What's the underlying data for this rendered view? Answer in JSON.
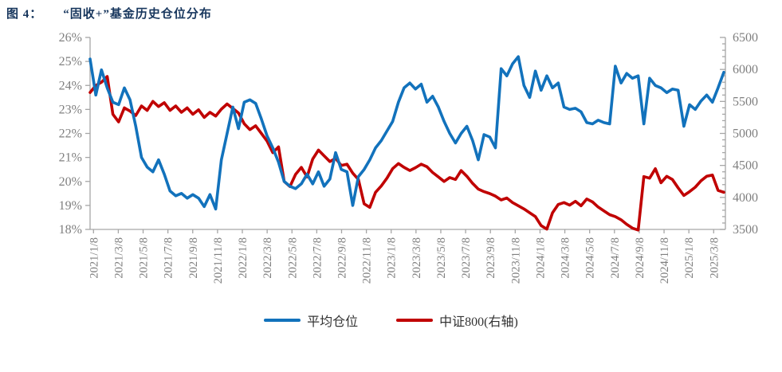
{
  "title": {
    "prefix": "图 4：",
    "text": "“固收+”基金历史仓位分布"
  },
  "legend": [
    {
      "label": "平均仓位",
      "color": "#1272BC"
    },
    {
      "label": "中证800(右轴)",
      "color": "#C00000"
    }
  ],
  "colors": {
    "title": "#17365D",
    "axis_line": "#A6A6A6",
    "axis_text": "#7F7F7F",
    "blue_series": "#1272BC",
    "red_series": "#C00000",
    "background": "#FFFFFF"
  },
  "chart_data": {
    "type": "line",
    "title": "“固收+”基金历史仓位分布",
    "sampling_note": "approx. biweekly points from 2021/1/8 to 2025/4",
    "grid": false,
    "legend_position": "bottom",
    "x_tick_labels": [
      "2021/1/8",
      "2021/3/8",
      "2021/5/8",
      "2021/7/8",
      "2021/9/8",
      "2021/11/8",
      "2022/1/8",
      "2022/3/8",
      "2022/5/8",
      "2022/7/8",
      "2022/9/8",
      "2022/11/8",
      "2023/1/8",
      "2023/3/8",
      "2023/5/8",
      "2023/7/8",
      "2023/9/8",
      "2023/11/8",
      "2024/1/8",
      "2024/3/8",
      "2024/5/8",
      "2024/7/8",
      "2024/9/8",
      "2024/11/8",
      "2025/1/8",
      "2025/3/8"
    ],
    "left_axis": {
      "min": 18,
      "max": 26,
      "step": 1,
      "suffix": "%",
      "tick_labels": [
        "26%",
        "25%",
        "24%",
        "23%",
        "22%",
        "21%",
        "20%",
        "19%",
        "18%"
      ]
    },
    "right_axis": {
      "min": 3500,
      "max": 6500,
      "step": 500,
      "minor_step": 100,
      "tick_labels": [
        "6500",
        "6000",
        "5500",
        "5000",
        "4500",
        "4000",
        "3500"
      ]
    },
    "series": [
      {
        "name": "平均仓位",
        "axis": "left",
        "unit": "%",
        "color": "#1272BC",
        "values": [
          25.1,
          23.6,
          24.65,
          23.9,
          23.3,
          23.2,
          23.9,
          23.4,
          22.3,
          21.0,
          20.6,
          20.4,
          20.9,
          20.3,
          19.6,
          19.4,
          19.5,
          19.3,
          19.45,
          19.3,
          18.95,
          19.45,
          18.85,
          20.9,
          22.0,
          23.1,
          22.2,
          23.3,
          23.4,
          23.25,
          22.6,
          21.9,
          21.4,
          20.8,
          20.0,
          19.8,
          19.7,
          19.9,
          20.3,
          19.9,
          20.4,
          19.8,
          20.1,
          21.2,
          20.5,
          20.4,
          19.0,
          20.2,
          20.5,
          20.9,
          21.4,
          21.7,
          22.1,
          22.5,
          23.3,
          23.9,
          24.1,
          23.85,
          24.05,
          23.3,
          23.55,
          23.1,
          22.5,
          22.0,
          21.6,
          22.0,
          22.3,
          21.7,
          20.9,
          21.95,
          21.85,
          21.4,
          24.7,
          24.4,
          24.9,
          25.2,
          24.0,
          23.5,
          24.6,
          23.8,
          24.4,
          23.9,
          24.1,
          23.1,
          23.0,
          23.05,
          22.9,
          22.45,
          22.4,
          22.55,
          22.45,
          22.4,
          24.8,
          24.1,
          24.5,
          24.3,
          24.4,
          22.4,
          24.3,
          24.0,
          23.9,
          23.7,
          23.85,
          23.8,
          22.3,
          23.2,
          23.0,
          23.35,
          23.6,
          23.3,
          23.9,
          24.55
        ]
      },
      {
        "name": "中证800(右轴)",
        "axis": "right",
        "unit": "index points",
        "color": "#C00000",
        "values": [
          5640,
          5750,
          5800,
          5890,
          5300,
          5180,
          5400,
          5350,
          5280,
          5430,
          5360,
          5500,
          5420,
          5480,
          5360,
          5430,
          5330,
          5400,
          5300,
          5370,
          5250,
          5330,
          5270,
          5380,
          5460,
          5390,
          5320,
          5150,
          5060,
          5120,
          5000,
          4880,
          4700,
          4790,
          4250,
          4170,
          4360,
          4470,
          4320,
          4600,
          4740,
          4650,
          4560,
          4610,
          4500,
          4520,
          4380,
          4280,
          3900,
          3845,
          4080,
          4180,
          4300,
          4450,
          4530,
          4470,
          4420,
          4465,
          4520,
          4480,
          4390,
          4320,
          4250,
          4310,
          4280,
          4420,
          4330,
          4220,
          4130,
          4090,
          4060,
          4020,
          3960,
          3990,
          3920,
          3870,
          3820,
          3760,
          3700,
          3560,
          3505,
          3760,
          3890,
          3920,
          3880,
          3940,
          3870,
          3975,
          3930,
          3850,
          3790,
          3730,
          3700,
          3650,
          3580,
          3520,
          3490,
          4325,
          4300,
          4448,
          4230,
          4330,
          4280,
          4150,
          4030,
          4090,
          4160,
          4260,
          4330,
          4350,
          4110,
          4080
        ]
      }
    ]
  }
}
